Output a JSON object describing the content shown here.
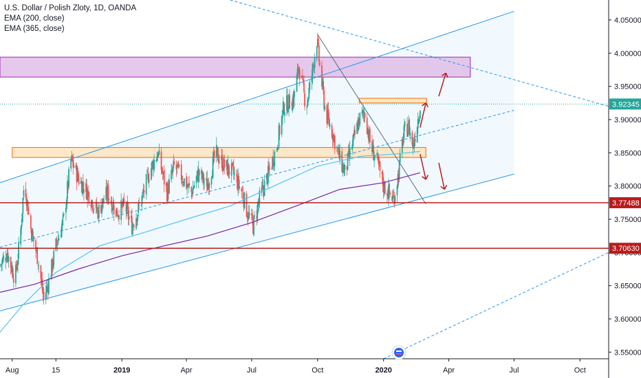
{
  "legend": {
    "symbol": "U.S. Dollar / Polish Zloty, 1D, OANDA",
    "ema200": "EMA (200, close)",
    "ema365": "EMA (365, close)"
  },
  "colors": {
    "up": "#26a69a",
    "down": "#ef5350",
    "ema200": "#4fc3f7",
    "ema365": "#7b1fa2",
    "channel": "#2196f3",
    "resistance_zone": "#e1bee7",
    "support_zone": "#ffe0b2",
    "horizontal_level": "#b71c1c",
    "last_price": "#26a69a"
  },
  "badges": {
    "last_price": "3.92345",
    "level_1": "3.77488",
    "level_2": "3.70630"
  },
  "chart_data": {
    "type": "candlestick",
    "title": "U.S. Dollar / Polish Zloty, 1D, OANDA",
    "xlabel": "",
    "ylabel": "",
    "ylim": [
      3.54,
      4.08
    ],
    "y_ticks": [
      3.55,
      3.6,
      3.65,
      3.7,
      3.75,
      3.8,
      3.85,
      3.9,
      3.95,
      4.0,
      4.05
    ],
    "x_range": [
      "2018-07-15",
      "2020-11-10"
    ],
    "x_ticks": [
      {
        "label": "Aug",
        "date": "2018-08-01",
        "bold": false
      },
      {
        "label": "15",
        "date": "2018-10-01",
        "bold": false
      },
      {
        "label": "2019",
        "date": "2019-01-01",
        "bold": true
      },
      {
        "label": "Apr",
        "date": "2019-04-01",
        "bold": false
      },
      {
        "label": "Jul",
        "date": "2019-07-01",
        "bold": false
      },
      {
        "label": "Oct",
        "date": "2019-10-01",
        "bold": false
      },
      {
        "label": "2020",
        "date": "2020-01-01",
        "bold": true
      },
      {
        "label": "Apr",
        "date": "2020-04-01",
        "bold": false
      },
      {
        "label": "Jul",
        "date": "2020-07-01",
        "bold": false
      },
      {
        "label": "Oct",
        "date": "2020-10-01",
        "bold": false
      }
    ],
    "price_path": [
      [
        "2018-07-15",
        3.68
      ],
      [
        "2018-07-25",
        3.7
      ],
      [
        "2018-08-05",
        3.66
      ],
      [
        "2018-08-12",
        3.72
      ],
      [
        "2018-08-18",
        3.81
      ],
      [
        "2018-08-26",
        3.74
      ],
      [
        "2018-09-06",
        3.69
      ],
      [
        "2018-09-14",
        3.63
      ],
      [
        "2018-09-22",
        3.66
      ],
      [
        "2018-10-01",
        3.71
      ],
      [
        "2018-10-12",
        3.75
      ],
      [
        "2018-10-22",
        3.84
      ],
      [
        "2018-11-02",
        3.81
      ],
      [
        "2018-11-15",
        3.79
      ],
      [
        "2018-11-28",
        3.76
      ],
      [
        "2018-12-12",
        3.79
      ],
      [
        "2018-12-24",
        3.76
      ],
      [
        "2019-01-05",
        3.77
      ],
      [
        "2019-01-15",
        3.74
      ],
      [
        "2019-01-26",
        3.77
      ],
      [
        "2019-02-08",
        3.82
      ],
      [
        "2019-02-20",
        3.85
      ],
      [
        "2019-03-05",
        3.79
      ],
      [
        "2019-03-15",
        3.83
      ],
      [
        "2019-03-28",
        3.81
      ],
      [
        "2019-04-08",
        3.79
      ],
      [
        "2019-04-18",
        3.82
      ],
      [
        "2019-04-30",
        3.8
      ],
      [
        "2019-05-12",
        3.85
      ],
      [
        "2019-05-24",
        3.83
      ],
      [
        "2019-06-05",
        3.82
      ],
      [
        "2019-06-18",
        3.79
      ],
      [
        "2019-06-25",
        3.76
      ],
      [
        "2019-07-03",
        3.74
      ],
      [
        "2019-07-12",
        3.78
      ],
      [
        "2019-07-25",
        3.82
      ],
      [
        "2019-08-05",
        3.86
      ],
      [
        "2019-08-15",
        3.92
      ],
      [
        "2019-08-28",
        3.93
      ],
      [
        "2019-09-05",
        3.98
      ],
      [
        "2019-09-15",
        3.92
      ],
      [
        "2019-09-22",
        3.96
      ],
      [
        "2019-09-30",
        4.02
      ],
      [
        "2019-10-04",
        3.98
      ],
      [
        "2019-10-12",
        3.91
      ],
      [
        "2019-10-22",
        3.88
      ],
      [
        "2019-11-01",
        3.84
      ],
      [
        "2019-11-08",
        3.82
      ],
      [
        "2019-11-18",
        3.86
      ],
      [
        "2019-11-28",
        3.9
      ],
      [
        "2019-12-06",
        3.91
      ],
      [
        "2019-12-14",
        3.86
      ],
      [
        "2019-12-22",
        3.84
      ],
      [
        "2020-01-01",
        3.8
      ],
      [
        "2020-01-08",
        3.79
      ],
      [
        "2020-01-15",
        3.78
      ],
      [
        "2020-01-22",
        3.82
      ],
      [
        "2020-01-29",
        3.88
      ],
      [
        "2020-02-05",
        3.89
      ],
      [
        "2020-02-11",
        3.86
      ],
      [
        "2020-02-16",
        3.89
      ],
      [
        "2020-02-21",
        3.92
      ]
    ],
    "ema200": [
      [
        "2018-07-15",
        3.58
      ],
      [
        "2018-08-15",
        3.62
      ],
      [
        "2018-10-01",
        3.67
      ],
      [
        "2018-12-01",
        3.71
      ],
      [
        "2019-02-01",
        3.73
      ],
      [
        "2019-04-01",
        3.75
      ],
      [
        "2019-06-01",
        3.77
      ],
      [
        "2019-08-01",
        3.8
      ],
      [
        "2019-10-01",
        3.83
      ],
      [
        "2019-12-01",
        3.845
      ],
      [
        "2020-01-15",
        3.848
      ],
      [
        "2020-02-21",
        3.852
      ]
    ],
    "ema365": [
      [
        "2018-07-15",
        3.64
      ],
      [
        "2018-09-01",
        3.652
      ],
      [
        "2018-11-01",
        3.675
      ],
      [
        "2019-01-01",
        3.695
      ],
      [
        "2019-03-01",
        3.71
      ],
      [
        "2019-05-01",
        3.725
      ],
      [
        "2019-07-01",
        3.745
      ],
      [
        "2019-09-01",
        3.77
      ],
      [
        "2019-11-01",
        3.795
      ],
      [
        "2020-01-01",
        3.805
      ],
      [
        "2020-02-21",
        3.82
      ]
    ],
    "horizontal_levels": [
      3.77488,
      3.7063
    ],
    "last_price": 3.92345,
    "zones": [
      {
        "name": "resistance",
        "from": "2018-07-15",
        "to": "2020-05-01",
        "low": 3.964,
        "high": 3.994
      },
      {
        "name": "support",
        "from": "2018-08-01",
        "to": "2020-02-29",
        "low": 3.843,
        "high": 3.858
      },
      {
        "name": "small",
        "from": "2019-11-28",
        "to": "2020-03-01",
        "low": 3.925,
        "high": 3.932
      }
    ],
    "channel": {
      "upper": [
        [
          "2018-07-15",
          3.805
        ],
        [
          "2020-07-01",
          4.063
        ]
      ],
      "lower": [
        [
          "2018-07-15",
          3.612
        ],
        [
          "2020-07-01",
          3.818
        ]
      ],
      "mid": [
        [
          "2018-07-15",
          3.708
        ],
        [
          "2020-07-01",
          3.914
        ]
      ]
    },
    "trend_lines": [
      {
        "name": "descending",
        "points": [
          [
            "2019-10-01",
            4.028
          ],
          [
            "2020-02-29",
            3.773
          ]
        ]
      },
      {
        "name": "long-down",
        "points": [
          [
            "2019-06-01",
            4.08
          ],
          [
            "2020-11-10",
            3.92
          ]
        ]
      },
      {
        "name": "long-up",
        "points": [
          [
            "2020-01-01",
            3.54
          ],
          [
            "2020-11-10",
            3.7
          ]
        ]
      }
    ],
    "projections": [
      {
        "name": "up-short",
        "from": [
          "2020-02-21",
          3.888
        ],
        "to": [
          "2020-02-29",
          3.925
        ]
      },
      {
        "name": "up-long",
        "from": [
          "2020-03-18",
          3.935
        ],
        "to": [
          "2020-03-28",
          3.97
        ]
      },
      {
        "name": "down-short",
        "from": [
          "2020-02-21",
          3.848
        ],
        "to": [
          "2020-02-29",
          3.81
        ]
      },
      {
        "name": "down-long",
        "from": [
          "2020-03-18",
          3.835
        ],
        "to": [
          "2020-03-26",
          3.795
        ]
      }
    ]
  }
}
